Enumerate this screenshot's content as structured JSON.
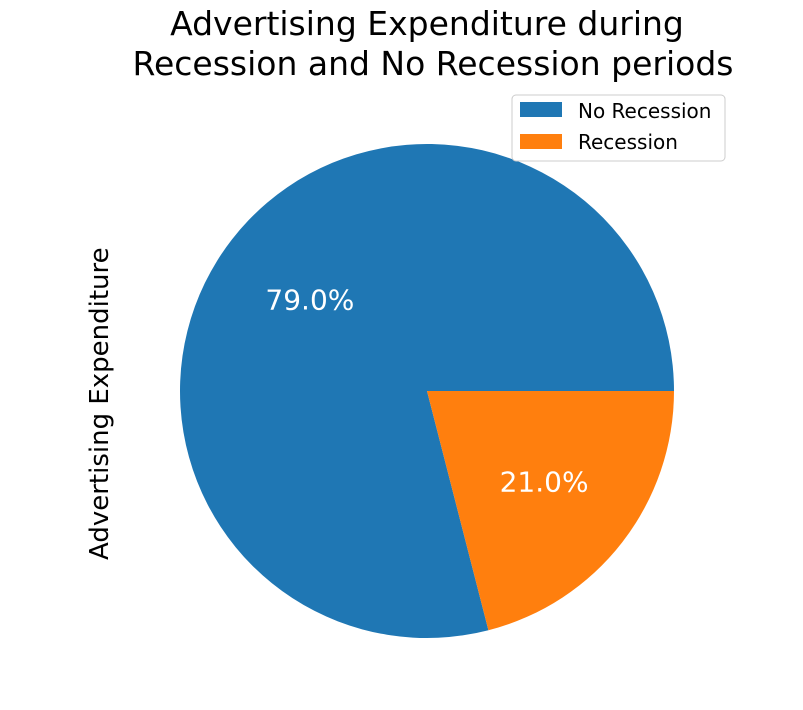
{
  "chart_data": {
    "type": "pie",
    "title_lines": [
      "Advertising Expenditure during",
      "Recession and No Recession periods"
    ],
    "ylabel": "Advertising Expenditure",
    "slices": [
      {
        "label": "No Recession",
        "percent": 79.0,
        "value_label": "79.0%",
        "color": "#1f77b4"
      },
      {
        "label": "Recession",
        "percent": 21.0,
        "value_label": "21.0%",
        "color": "#ff7f0e"
      }
    ],
    "start_angle_deg": 0,
    "direction": "counterclockwise",
    "legend": {
      "position": "top-right",
      "entries": [
        "No Recession",
        "Recession"
      ]
    }
  }
}
